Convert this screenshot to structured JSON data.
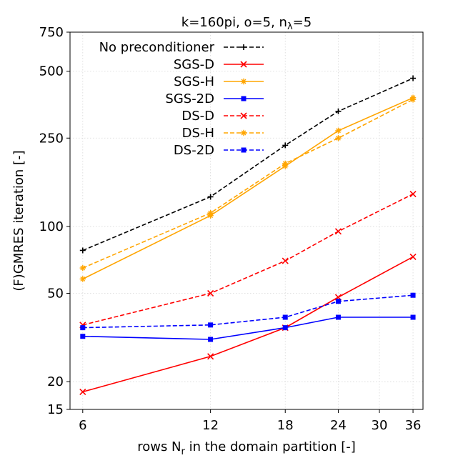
{
  "chart_data": {
    "type": "line",
    "title": "k=160pi, o=5, n",
    "title_sub": "λ",
    "title_tail": "=5",
    "xlabel": "rows N",
    "xlabel_sub": "r",
    "xlabel_tail": " in the domain partition [-]",
    "ylabel": "(F)GMRES iteration [-]",
    "xscale": "log",
    "yscale": "log",
    "xlim": [
      5.6,
      38
    ],
    "ylim": [
      15,
      750
    ],
    "xticks": [
      6,
      12,
      18,
      24,
      30,
      36
    ],
    "xtick_labels": [
      "6",
      "12",
      "18",
      "24",
      "30",
      "36"
    ],
    "yticks": [
      15,
      20,
      50,
      100,
      250,
      500,
      750
    ],
    "ytick_labels": [
      "15",
      "20",
      "50",
      "100",
      "250",
      "500",
      "750"
    ],
    "grid": true,
    "legend_position": "top-left",
    "x": [
      6,
      12,
      18,
      24,
      36
    ],
    "series": [
      {
        "name": "No preconditioner",
        "values": [
          78,
          136,
          232,
          330,
          465
        ],
        "color": "#000000",
        "dash": "dashed",
        "marker": "plus"
      },
      {
        "name": "SGS-D",
        "values": [
          18,
          26,
          35,
          48,
          73
        ],
        "color": "#ff0000",
        "dash": "solid",
        "marker": "x"
      },
      {
        "name": "SGS-H",
        "values": [
          58,
          112,
          187,
          270,
          380
        ],
        "color": "#ffa500",
        "dash": "solid",
        "marker": "star"
      },
      {
        "name": "SGS-2D",
        "values": [
          32,
          31,
          35,
          39,
          39
        ],
        "color": "#0000ff",
        "dash": "solid",
        "marker": "square"
      },
      {
        "name": "DS-D",
        "values": [
          36,
          50,
          70,
          95,
          140
        ],
        "color": "#ff0000",
        "dash": "dashed",
        "marker": "x"
      },
      {
        "name": "DS-H",
        "values": [
          65,
          115,
          192,
          250,
          373
        ],
        "color": "#ffa500",
        "dash": "dashed",
        "marker": "star"
      },
      {
        "name": "DS-2D",
        "values": [
          35,
          36,
          39,
          46,
          49
        ],
        "color": "#0000ff",
        "dash": "dashed",
        "marker": "square"
      }
    ]
  }
}
